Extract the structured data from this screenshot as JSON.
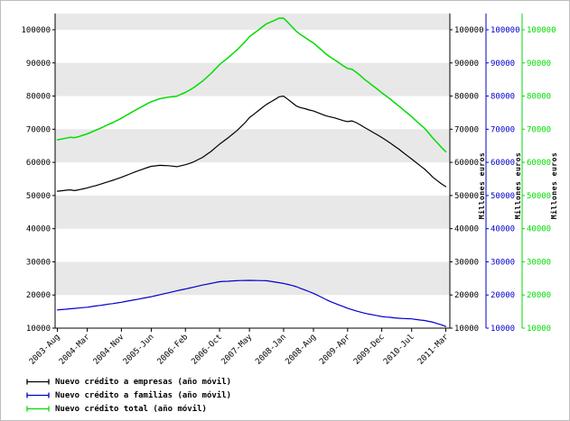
{
  "chart_data": {
    "type": "line",
    "title": "",
    "y_axis": {
      "min": 10000,
      "max": 100000,
      "ticks": [
        10000,
        20000,
        30000,
        40000,
        50000,
        60000,
        70000,
        80000,
        90000,
        100000
      ]
    },
    "right_axes": [
      {
        "label": "Millones euros",
        "color": "#000000"
      },
      {
        "label": "Millones euros",
        "color": "#0000cc"
      },
      {
        "label": "Millones euros",
        "color": "#00dd00"
      }
    ],
    "x_tick_labels": [
      "2003-Aug",
      "2004-Mar",
      "2004-Nov",
      "2005-Jun",
      "2006-Feb",
      "2006-Oct",
      "2007-May",
      "2008-Jan",
      "2008-Aug",
      "2009-Apr",
      "2009-Dec",
      "2010-Jul",
      "2011-Mar"
    ],
    "x_tick_indices": [
      0,
      7,
      15,
      22,
      30,
      38,
      45,
      53,
      60,
      68,
      76,
      83,
      91
    ],
    "n_points": 92,
    "band_color": "#e8e8e8",
    "grid": "banded",
    "legend_position": "bottom-left",
    "series": [
      {
        "name": "Nuevo crédito a empresas (año móvil)",
        "color": "#000000",
        "values": [
          51300,
          51450,
          51600,
          51700,
          51500,
          51700,
          52000,
          52300,
          52650,
          53000,
          53400,
          53800,
          54200,
          54600,
          55050,
          55500,
          56000,
          56500,
          57000,
          57500,
          57950,
          58400,
          58800,
          58950,
          59100,
          59050,
          59000,
          58850,
          58700,
          59000,
          59300,
          59700,
          60200,
          60850,
          61500,
          62400,
          63300,
          64400,
          65500,
          66450,
          67400,
          68450,
          69500,
          70750,
          72000,
          73500,
          74500,
          75500,
          76500,
          77500,
          78250,
          79000,
          79800,
          80000,
          79000,
          78000,
          77000,
          76500,
          76200,
          75800,
          75500,
          75000,
          74500,
          74000,
          73700,
          73400,
          73000,
          72600,
          72300,
          72500,
          72000,
          71300,
          70500,
          69800,
          69000,
          68300,
          67500,
          66700,
          65800,
          64900,
          64000,
          63000,
          62000,
          61000,
          60000,
          59000,
          58000,
          56800,
          55500,
          54500,
          53500,
          52700
        ]
      },
      {
        "name": "Nuevo crédito a familias (año móvil)",
        "color": "#0000cc",
        "values": [
          15500,
          15600,
          15700,
          15850,
          15950,
          16050,
          16200,
          16300,
          16500,
          16700,
          16850,
          17050,
          17250,
          17400,
          17600,
          17800,
          18050,
          18300,
          18550,
          18750,
          19000,
          19250,
          19500,
          19800,
          20100,
          20400,
          20650,
          20950,
          21250,
          21550,
          21800,
          22100,
          22400,
          22700,
          23000,
          23250,
          23500,
          23750,
          24000,
          24100,
          24150,
          24250,
          24300,
          24350,
          24380,
          24400,
          24380,
          24350,
          24330,
          24300,
          24100,
          23900,
          23700,
          23500,
          23200,
          22850,
          22500,
          22000,
          21500,
          21000,
          20500,
          19900,
          19250,
          18600,
          18000,
          17500,
          17000,
          16500,
          16000,
          15600,
          15200,
          14850,
          14500,
          14250,
          14000,
          13750,
          13500,
          13350,
          13250,
          13100,
          13000,
          12900,
          12850,
          12800,
          12600,
          12450,
          12300,
          12050,
          11800,
          11400,
          11000,
          10500
        ]
      },
      {
        "name": "Nuevo crédito total (año móvil)",
        "color": "#00dd00",
        "values": [
          66800,
          67050,
          67300,
          67550,
          67450,
          67750,
          68200,
          68600,
          69150,
          69700,
          70250,
          70850,
          71450,
          72000,
          72650,
          73300,
          74050,
          74800,
          75550,
          76250,
          76950,
          77650,
          78300,
          78750,
          79200,
          79450,
          79650,
          79800,
          79950,
          80550,
          81100,
          81800,
          82600,
          83550,
          84500,
          85650,
          86800,
          88150,
          89500,
          90550,
          91550,
          92700,
          93800,
          95100,
          96380,
          97900,
          98880,
          99850,
          100830,
          101800,
          102350,
          102900,
          103500,
          103500,
          102200,
          100850,
          99500,
          98500,
          97700,
          96800,
          96000,
          94900,
          93750,
          92600,
          91700,
          90900,
          90000,
          89100,
          88300,
          88100,
          87200,
          86150,
          85000,
          84050,
          83000,
          82050,
          81000,
          80050,
          79050,
          78000,
          77000,
          75900,
          74850,
          73800,
          72600,
          71450,
          70300,
          68850,
          67300,
          65900,
          64500,
          63200
        ]
      }
    ]
  }
}
